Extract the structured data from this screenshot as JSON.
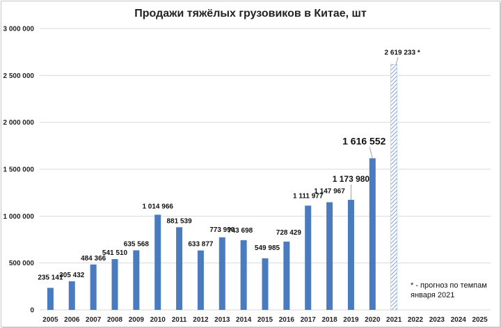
{
  "chart_data": {
    "type": "bar",
    "title": "Продажи тяжёлых грузовиков в Китае, шт",
    "xlabel": "",
    "ylabel": "",
    "ylim": [
      0,
      3000000
    ],
    "yticks": [
      0,
      500000,
      1000000,
      1500000,
      2000000,
      2500000,
      3000000
    ],
    "ytick_labels": [
      "0",
      "500 000",
      "1 000 000",
      "1 500 000",
      "2 000 000",
      "2 500 000",
      "3 000 000"
    ],
    "grid": true,
    "categories": [
      "2005",
      "2006",
      "2007",
      "2008",
      "2009",
      "2010",
      "2011",
      "2012",
      "2013",
      "2014",
      "2015",
      "2016",
      "2017",
      "2018",
      "2019",
      "2020",
      "2021",
      "2022",
      "2023",
      "2024",
      "2025"
    ],
    "values": [
      235141,
      305432,
      484366,
      541510,
      635568,
      1014966,
      881539,
      633877,
      773990,
      743698,
      549985,
      728429,
      1111977,
      1147967,
      1173980,
      1616552,
      2619233,
      null,
      null,
      null,
      null
    ],
    "labels": [
      "235 141",
      "305 432",
      "484 366",
      "541 510",
      "635 568",
      "1 014 966",
      "881 539",
      "633 877",
      "773 990",
      "743 698",
      "549 985",
      "728 429",
      "1 111 977",
      "1 147 967",
      "1 173 980",
      "1 616 552",
      "2 619 233 *",
      "",
      "",
      "",
      ""
    ],
    "forecast_index": 16,
    "colors": {
      "bar": "#4a7bbf",
      "forecast_stripe": "#9bb7de",
      "grid": "#d9d9d9"
    },
    "annotation": "* - прогноз по темпам января 2021"
  }
}
